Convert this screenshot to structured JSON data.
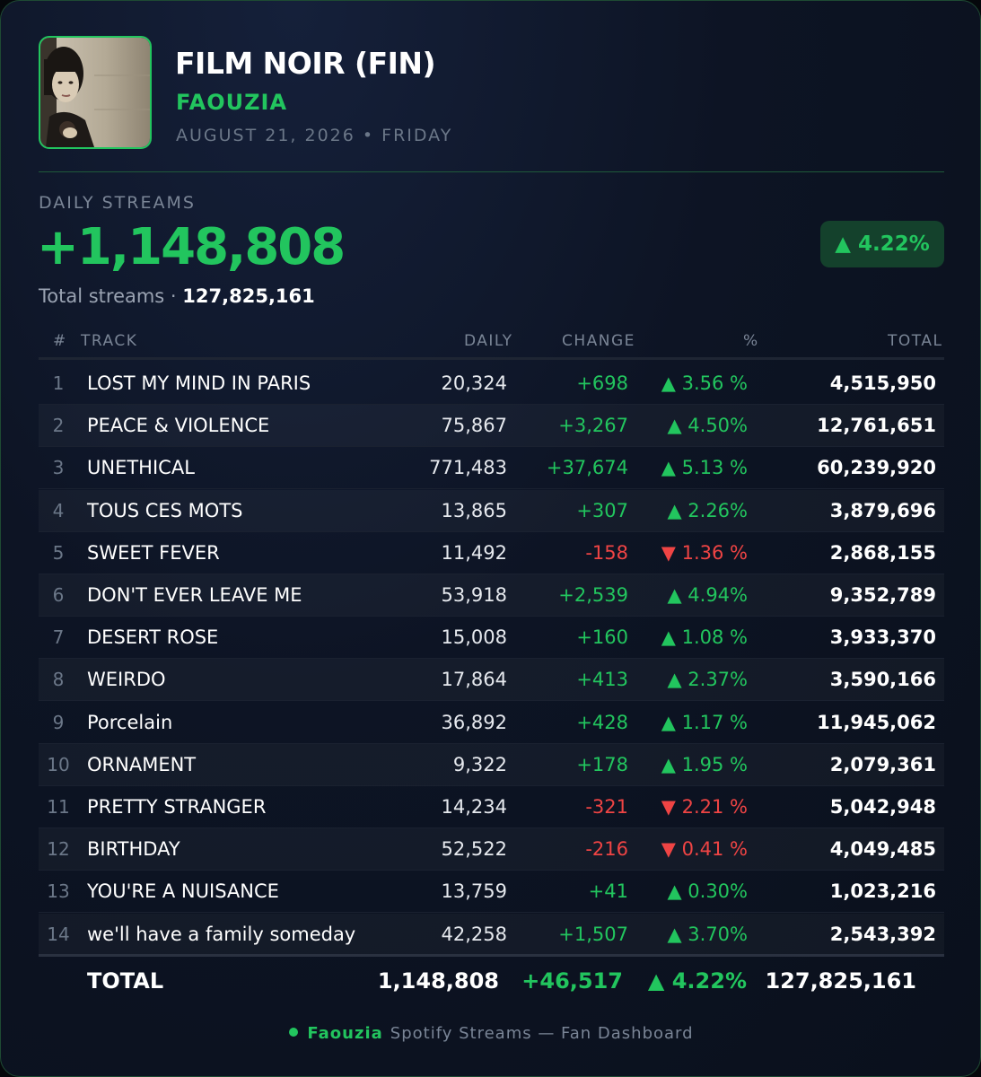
{
  "header": {
    "album_title": "FILM NOIR (FIN)",
    "artist": "FAOUZIA",
    "date": "AUGUST 21, 2026 • FRIDAY"
  },
  "summary": {
    "daily_label": "DAILY STREAMS",
    "daily_value": "+1,148,808",
    "total_label": "Total streams ·",
    "total_value": "127,825,161",
    "percent_badge": "▲ 4.22%"
  },
  "table": {
    "headers": {
      "num": "#",
      "track": "TRACK",
      "daily": "DAILY",
      "change": "CHANGE",
      "pct": "%",
      "total": "TOTAL"
    },
    "rows": [
      {
        "num": "1",
        "track": "LOST MY MIND IN PARIS",
        "daily": "20,324",
        "change": "+698",
        "pct": "▲ 3.56 %",
        "total": "4,515,950",
        "dir": "up"
      },
      {
        "num": "2",
        "track": "PEACE & VIOLENCE",
        "daily": "75,867",
        "change": "+3,267",
        "pct": "▲ 4.50%",
        "total": "12,761,651",
        "dir": "up"
      },
      {
        "num": "3",
        "track": "UNETHICAL",
        "daily": "771,483",
        "change": "+37,674",
        "pct": "▲ 5.13  %",
        "total": "60,239,920",
        "dir": "up"
      },
      {
        "num": "4",
        "track": "TOUS CES MOTS",
        "daily": "13,865",
        "change": "+307",
        "pct": "▲ 2.26%",
        "total": "3,879,696",
        "dir": "up"
      },
      {
        "num": "5",
        "track": "SWEET FEVER",
        "daily": "11,492",
        "change": "-158",
        "pct": "▼ 1.36 %",
        "total": "2,868,155",
        "dir": "down"
      },
      {
        "num": "6",
        "track": "DON'T EVER LEAVE ME",
        "daily": "53,918",
        "change": "+2,539",
        "pct": "▲ 4.94%",
        "total": "9,352,789",
        "dir": "up"
      },
      {
        "num": "7",
        "track": "DESERT ROSE",
        "daily": "15,008",
        "change": "+160",
        "pct": "▲ 1.08 %",
        "total": "3,933,370",
        "dir": "up"
      },
      {
        "num": "8",
        "track": "WEIRDO",
        "daily": "17,864",
        "change": "+413",
        "pct": "▲ 2.37%",
        "total": "3,590,166",
        "dir": "up"
      },
      {
        "num": "9",
        "track": "Porcelain",
        "daily": "36,892",
        "change": "+428",
        "pct": "▲ 1.17   %",
        "total": "11,945,062",
        "dir": "up"
      },
      {
        "num": "10",
        "track": "ORNAMENT",
        "daily": "9,322",
        "change": "+178",
        "pct": "▲ 1.95 %",
        "total": "2,079,361",
        "dir": "up"
      },
      {
        "num": "11",
        "track": "PRETTY STRANGER",
        "daily": "14,234",
        "change": "-321",
        "pct": "▼ 2.21 %",
        "total": "5,042,948",
        "dir": "down"
      },
      {
        "num": "12",
        "track": "BIRTHDAY",
        "daily": "52,522",
        "change": "-216",
        "pct": "▼ 0.41 %",
        "total": "4,049,485",
        "dir": "down"
      },
      {
        "num": "13",
        "track": "YOU'RE A NUISANCE",
        "daily": "13,759",
        "change": "+41",
        "pct": "▲ 0.30%",
        "total": "1,023,216",
        "dir": "up"
      },
      {
        "num": "14",
        "track": "we'll have a family someday",
        "daily": "42,258",
        "change": "+1,507",
        "pct": "▲ 3.70%",
        "total": "2,543,392",
        "dir": "up"
      }
    ],
    "total_row": {
      "label": "TOTAL",
      "daily": "1,148,808",
      "change": "+46,517",
      "pct": "▲ 4.22%",
      "total": "127,825,161"
    }
  },
  "footer": {
    "brand": "Faouzia",
    "text": "Spotify Streams — Fan Dashboard"
  },
  "colors": {
    "accent": "#22c55e",
    "negative": "#ef4444",
    "background": "#0d1424"
  }
}
